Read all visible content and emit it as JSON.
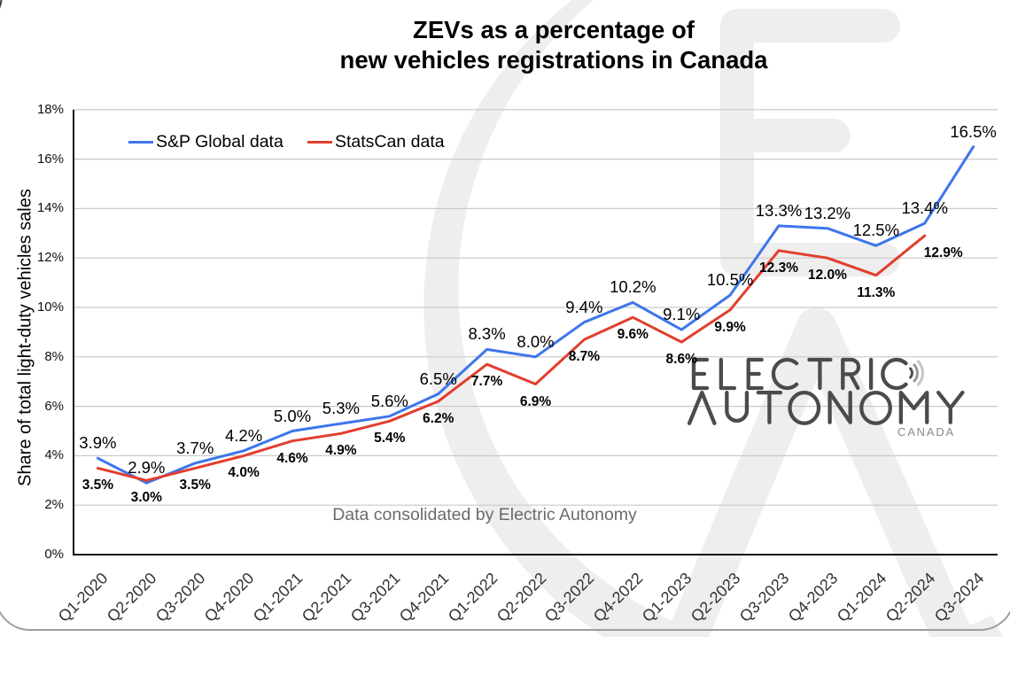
{
  "title": {
    "line1": "ZEVs as a percentage of",
    "line2": "new vehicles registrations in Canada"
  },
  "legend": {
    "items": [
      {
        "label": "S&P Global data",
        "color": "#3d76ec"
      },
      {
        "label": "StatsCan data",
        "color": "#e23e2d"
      }
    ]
  },
  "note": {
    "text": "Data consolidated by Electric Autonomy"
  },
  "watermark_logo": {
    "line1": "ELECTRIC",
    "line2": "AUTONOMY",
    "line3": "CANADA"
  },
  "chart_data": {
    "type": "line",
    "title": "ZEVs as a percentage of new vehicles registrations in Canada",
    "xlabel": "",
    "ylabel": "Share of total light-duty vehicles sales",
    "ylim": [
      0,
      18
    ],
    "ytick_step": 2,
    "yticks": [
      "0%",
      "2%",
      "4%",
      "6%",
      "8%",
      "10%",
      "12%",
      "14%",
      "16%",
      "18%"
    ],
    "ytick_format": "percent",
    "grid": true,
    "legend_position": "top-left-inside",
    "categories": [
      "Q1-2020",
      "Q2-2020",
      "Q3-2020",
      "Q4-2020",
      "Q1-2021",
      "Q2-2021",
      "Q3-2021",
      "Q4-2021",
      "Q1-2022",
      "Q2-2022",
      "Q3-2022",
      "Q4-2022",
      "Q1-2023",
      "Q2-2023",
      "Q3-2023",
      "Q4-2023",
      "Q1-2024",
      "Q2-2024",
      "Q3-2024"
    ],
    "series": [
      {
        "name": "S&P Global data",
        "color": "#3d76ec",
        "values": [
          3.9,
          2.9,
          3.7,
          4.2,
          5.0,
          5.3,
          5.6,
          6.5,
          8.3,
          8.0,
          9.4,
          10.2,
          9.1,
          10.5,
          13.3,
          13.2,
          12.5,
          13.4,
          16.5
        ]
      },
      {
        "name": "StatsCan data",
        "color": "#e23e2d",
        "values": [
          3.5,
          3.0,
          3.5,
          4.0,
          4.6,
          4.9,
          5.4,
          6.2,
          7.7,
          6.9,
          8.7,
          9.6,
          8.6,
          9.9,
          12.3,
          12.0,
          11.3,
          12.9
        ]
      }
    ],
    "annotation": "Data consolidated by Electric Autonomy"
  },
  "colors": {
    "grid": "#c9c9c9",
    "axis": "#111111",
    "watermark": "#eeeeee",
    "logo_dark": "#4b4b4e",
    "border": "#9e9e9e"
  }
}
